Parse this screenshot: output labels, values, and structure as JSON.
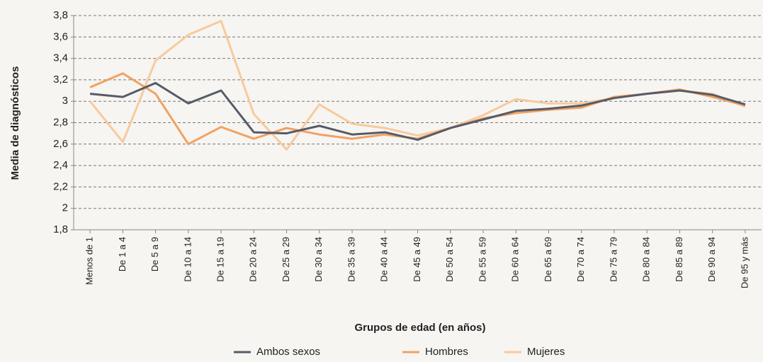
{
  "chart_data": {
    "type": "line",
    "x_label": "Grupos de edad (en años)",
    "y_label": "Media de diagnósticos",
    "categories": [
      "Menos de 1",
      "De 1 a 4",
      "De 5 a 9",
      "De 10 a 14",
      "De 15 a 19",
      "De 20 a 24",
      "De 25 a 29",
      "De 30 a 34",
      "De 35 a 39",
      "De 40 a 44",
      "De 45 a 49",
      "De 50 a 54",
      "De 55 a 59",
      "De 60 a 64",
      "De 65 a 69",
      "De 70 a 74",
      "De 75 a 79",
      "De 80 a 84",
      "De 85 a 89",
      "De 90 a 94",
      "De 95 y más"
    ],
    "series": [
      {
        "name": "Ambos sexos",
        "color": "#575b68",
        "values": [
          3.07,
          3.04,
          3.17,
          2.98,
          3.1,
          2.71,
          2.7,
          2.77,
          2.69,
          2.71,
          2.64,
          2.75,
          2.83,
          2.91,
          2.93,
          2.96,
          3.03,
          3.07,
          3.1,
          3.06,
          2.97
        ]
      },
      {
        "name": "Hombres",
        "color": "#f0a263",
        "values": [
          3.13,
          3.26,
          3.07,
          2.6,
          2.76,
          2.65,
          2.75,
          2.69,
          2.65,
          2.69,
          2.65,
          2.75,
          2.84,
          2.89,
          2.92,
          2.94,
          3.04,
          3.07,
          3.11,
          3.04,
          2.96
        ]
      },
      {
        "name": "Mujeres",
        "color": "#f8ca9c",
        "values": [
          3.0,
          2.62,
          3.38,
          3.62,
          3.75,
          2.88,
          2.55,
          2.97,
          2.79,
          2.75,
          2.68,
          2.75,
          2.87,
          3.02,
          2.98,
          2.98,
          3.03,
          3.07,
          3.1,
          3.07,
          2.95
        ]
      }
    ],
    "ylim": [
      1.8,
      3.8
    ],
    "yticks": [
      {
        "value": 1.8,
        "label": "1,8"
      },
      2,
      {
        "value": 2.2,
        "label": "2,2"
      },
      {
        "value": 2.4,
        "label": "2,4"
      },
      {
        "value": 2.6,
        "label": "2,6"
      },
      {
        "value": 2.8,
        "label": "2,8"
      },
      3,
      {
        "value": 3.2,
        "label": "3,2"
      },
      {
        "value": 3.4,
        "label": "3,4"
      },
      {
        "value": 3.6,
        "label": "3,6"
      },
      {
        "value": 3.8,
        "label": "3,8"
      }
    ],
    "grid": true
  }
}
